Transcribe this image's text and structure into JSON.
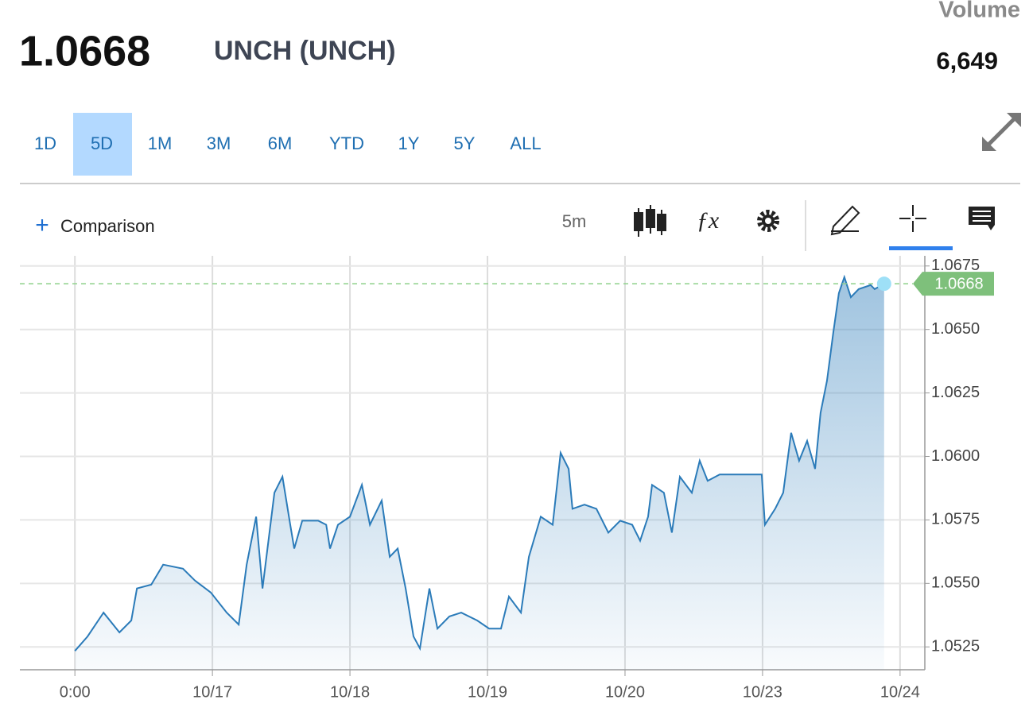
{
  "header": {
    "name": "UNCH (UNCH)",
    "volume_label": "Volume",
    "volume": "6,649"
  },
  "ranges": [
    "1D",
    "5D",
    "1M",
    "3M",
    "6M",
    "YTD",
    "1Y",
    "5Y",
    "ALL"
  ],
  "active_range_index": 1,
  "toolbar": {
    "comparison": "Comparison",
    "interval": "5m"
  },
  "chart_data": {
    "type": "line",
    "color": "#2b7bb9",
    "grid": true,
    "last_value": 1.0668,
    "x": [
      0,
      0.092,
      0.208,
      0.324,
      0.41,
      0.451,
      0.555,
      0.642,
      0.786,
      0.873,
      0.988,
      1.104,
      1.191,
      1.249,
      1.318,
      1.364,
      1.451,
      1.509,
      1.566,
      1.595,
      1.653,
      1.769,
      1.827,
      1.855,
      1.913,
      2.0,
      2.087,
      2.145,
      2.231,
      2.289,
      2.347,
      2.405,
      2.462,
      2.509,
      2.578,
      2.636,
      2.723,
      2.809,
      2.925,
      3.012,
      3.098,
      3.156,
      3.243,
      3.301,
      3.387,
      3.474,
      3.532,
      3.59,
      3.618,
      3.705,
      3.792,
      3.879,
      3.965,
      4.052,
      4.11,
      4.168,
      4.197,
      4.283,
      4.341,
      4.399,
      4.486,
      4.543,
      4.601,
      4.688,
      4.994,
      5.017,
      5.092,
      5.15,
      5.208,
      5.266,
      5.324,
      5.382,
      5.422,
      5.468,
      5.514,
      5.555,
      5.595,
      5.642,
      5.699,
      5.786,
      5.815,
      5.884
    ],
    "values": [
      1.05234,
      1.05291,
      1.05385,
      1.05307,
      1.05354,
      1.0548,
      1.05495,
      1.05574,
      1.05558,
      1.05511,
      1.05464,
      1.05385,
      1.05338,
      1.05574,
      1.05763,
      1.0548,
      1.05857,
      1.0592,
      1.05731,
      1.05637,
      1.05747,
      1.05747,
      1.05731,
      1.05637,
      1.05731,
      1.05763,
      1.05888,
      1.05731,
      1.05826,
      1.05605,
      1.05637,
      1.0548,
      1.05291,
      1.05244,
      1.0548,
      1.05322,
      1.0537,
      1.05385,
      1.05354,
      1.05322,
      1.05322,
      1.05448,
      1.05385,
      1.05605,
      1.05763,
      1.05731,
      1.06014,
      1.05951,
      1.05794,
      1.0581,
      1.05794,
      1.057,
      1.05747,
      1.05731,
      1.05668,
      1.05763,
      1.05888,
      1.05857,
      1.057,
      1.0592,
      1.05857,
      1.05983,
      1.05904,
      1.05929,
      1.05929,
      1.05731,
      1.05794,
      1.05857,
      1.06093,
      1.05983,
      1.06061,
      1.05951,
      1.06172,
      1.06297,
      1.06486,
      1.06643,
      1.06706,
      1.06627,
      1.06659,
      1.06675,
      1.06659,
      1.0668
    ],
    "xlim": [
      -0.4,
      6.18
    ],
    "xticks": [
      {
        "value": 0,
        "label": "0:00"
      },
      {
        "value": 1,
        "label": "10/17"
      },
      {
        "value": 2,
        "label": "10/18"
      },
      {
        "value": 3,
        "label": "10/19"
      },
      {
        "value": 4,
        "label": "10/20"
      },
      {
        "value": 5,
        "label": "10/23"
      },
      {
        "value": 6,
        "label": "10/24"
      }
    ],
    "ylim": [
      1.0516,
      1.0679
    ],
    "yticks": [
      1.0525,
      {
        "value": 1.055,
        "label": "1.0550"
      },
      1.0575,
      {
        "value": 1.06,
        "label": "1.0600"
      },
      1.0625,
      {
        "value": 1.065,
        "label": "1.0650"
      },
      1.0675
    ]
  }
}
